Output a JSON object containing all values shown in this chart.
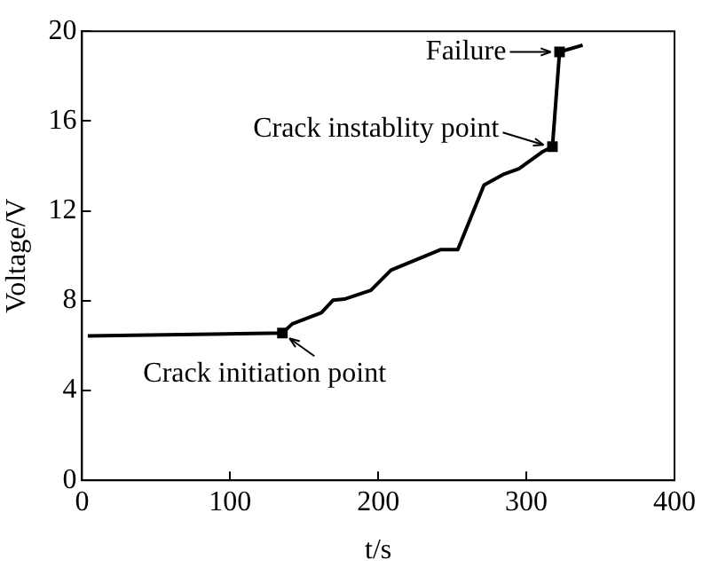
{
  "chart_data": {
    "type": "line",
    "xlabel": "t/s",
    "ylabel": "Voltage/V",
    "xlim": [
      0,
      400
    ],
    "xticks": [
      0,
      100,
      200,
      300,
      400
    ],
    "ylim": [
      0,
      20
    ],
    "yticks": [
      0,
      4,
      8,
      12,
      16,
      20
    ],
    "grid": false,
    "legend": false,
    "series": [
      {
        "type": "line",
        "color": "#000000",
        "marker": "none",
        "x": [
          3.9,
          135.3,
          142,
          161.6,
          169.4,
          177,
          195,
          208.6,
          242,
          253.7,
          271.4,
          285,
          295,
          310.6,
          317.6,
          322.4,
          338
        ],
        "values": [
          6.43,
          6.56,
          6.97,
          7.46,
          8.02,
          8.07,
          8.46,
          9.36,
          10.27,
          10.27,
          13.15,
          13.64,
          13.88,
          14.62,
          14.86,
          19.08,
          19.38
        ]
      },
      {
        "type": "scatter",
        "color": "#000000",
        "marker": "square",
        "x": [
          135.3,
          317.6,
          322.4
        ],
        "values": [
          6.56,
          14.86,
          19.08
        ]
      }
    ],
    "annotations": [
      {
        "text": "Crack initiation point",
        "x": 135.3,
        "y": 6.56
      },
      {
        "text": "Crack instablity point",
        "x": 317.6,
        "y": 14.86
      },
      {
        "text": "Failure",
        "x": 322.4,
        "y": 19.08
      }
    ]
  }
}
